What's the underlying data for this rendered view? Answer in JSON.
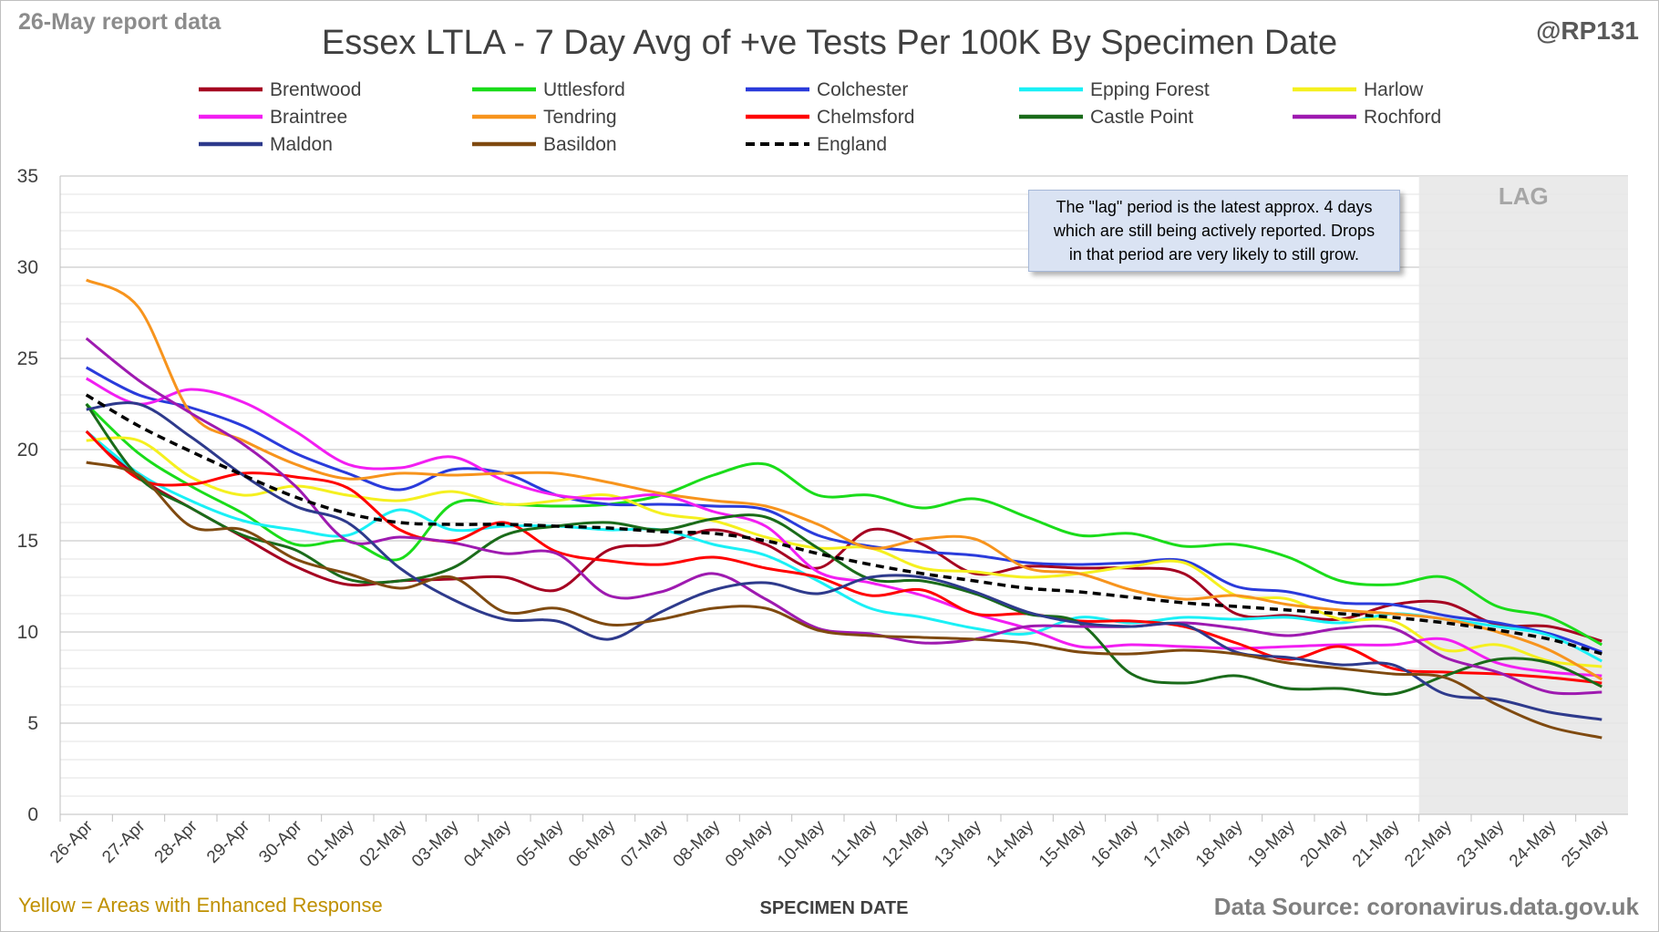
{
  "header": {
    "report_label": "26-May report data",
    "handle": "@RP131",
    "footer_note": "Yellow = Areas with Enhanced Response",
    "source": "Data Source: coronavirus.data.gov.uk"
  },
  "annotation": {
    "lag_label": "LAG",
    "note_lines": [
      "The \"lag\" period is the latest approx. 4 days",
      "which are still being actively reported.  Drops",
      "in that period are very likely to still grow."
    ]
  },
  "chart_data": {
    "type": "line",
    "title": "Essex LTLA - 7 Day Avg of +ve Tests Per 100K By Specimen Date",
    "xlabel": "SPECIMEN DATE",
    "ylabel": "",
    "ylim": [
      0,
      35
    ],
    "yticks": [
      0,
      5,
      10,
      15,
      20,
      25,
      30,
      35
    ],
    "grid": true,
    "legend_position": "top",
    "lag_start_category": "21-May",
    "categories": [
      "26-Apr",
      "27-Apr",
      "28-Apr",
      "29-Apr",
      "30-Apr",
      "01-May",
      "02-May",
      "03-May",
      "04-May",
      "05-May",
      "06-May",
      "07-May",
      "08-May",
      "09-May",
      "10-May",
      "11-May",
      "12-May",
      "13-May",
      "14-May",
      "15-May",
      "16-May",
      "17-May",
      "18-May",
      "19-May",
      "20-May",
      "21-May",
      "22-May",
      "23-May",
      "24-May",
      "25-May"
    ],
    "series": [
      {
        "name": "Brentwood",
        "color": "#a50021",
        "dash": false,
        "values": [
          21.0,
          18.5,
          16.8,
          15.2,
          13.6,
          12.6,
          12.8,
          12.9,
          13.0,
          12.3,
          14.5,
          14.8,
          15.6,
          14.8,
          13.5,
          15.6,
          14.8,
          13.2,
          13.6,
          13.5,
          13.5,
          13.2,
          11.0,
          10.9,
          10.7,
          11.5,
          11.6,
          10.4,
          10.3,
          9.5
        ]
      },
      {
        "name": "Uttlesford",
        "color": "#1adc1a",
        "dash": false,
        "values": [
          22.5,
          19.8,
          18.0,
          16.5,
          14.8,
          15.0,
          14.0,
          17.0,
          17.0,
          16.9,
          17.0,
          17.5,
          18.6,
          19.2,
          17.5,
          17.5,
          16.8,
          17.3,
          16.3,
          15.3,
          15.4,
          14.7,
          14.8,
          14.1,
          12.8,
          12.6,
          13.0,
          11.4,
          10.8,
          9.3
        ]
      },
      {
        "name": "Colchester",
        "color": "#2a3bdb",
        "dash": false,
        "values": [
          24.5,
          23.0,
          22.3,
          21.3,
          19.8,
          18.7,
          17.8,
          18.9,
          18.7,
          17.5,
          17.0,
          17.0,
          16.9,
          16.7,
          15.3,
          14.7,
          14.4,
          14.2,
          13.8,
          13.7,
          13.8,
          13.9,
          12.5,
          12.2,
          11.6,
          11.5,
          10.9,
          10.5,
          9.9,
          8.9
        ]
      },
      {
        "name": "Epping Forest",
        "color": "#1af0f6",
        "dash": false,
        "values": [
          21.0,
          18.7,
          17.2,
          16.1,
          15.6,
          15.3,
          16.7,
          15.6,
          15.8,
          15.8,
          15.6,
          15.6,
          14.8,
          14.2,
          12.8,
          11.3,
          10.8,
          10.2,
          9.9,
          10.8,
          10.5,
          10.8,
          10.7,
          10.8,
          10.5,
          11.0,
          10.7,
          10.3,
          9.8,
          8.4
        ]
      },
      {
        "name": "Harlow",
        "color": "#f5f01f",
        "dash": false,
        "values": [
          20.5,
          20.5,
          18.5,
          17.5,
          18.0,
          17.5,
          17.2,
          17.7,
          17.0,
          17.2,
          17.5,
          16.5,
          16.1,
          15.2,
          14.6,
          14.6,
          13.5,
          13.3,
          13.0,
          13.2,
          13.6,
          13.8,
          12.0,
          11.8,
          10.7,
          10.6,
          9.0,
          9.3,
          8.4,
          8.1
        ]
      },
      {
        "name": "Braintree",
        "color": "#f21ef2",
        "dash": false,
        "values": [
          23.9,
          22.5,
          23.3,
          22.6,
          21.0,
          19.2,
          19.0,
          19.6,
          18.3,
          17.5,
          17.3,
          17.5,
          16.6,
          15.8,
          13.3,
          12.7,
          12.0,
          11.0,
          10.2,
          9.2,
          9.3,
          9.2,
          9.1,
          9.2,
          9.3,
          9.3,
          9.6,
          8.3,
          7.8,
          7.6
        ]
      },
      {
        "name": "Tendring",
        "color": "#f7941d",
        "dash": false,
        "values": [
          29.3,
          27.8,
          22.0,
          20.5,
          19.2,
          18.4,
          18.7,
          18.6,
          18.7,
          18.7,
          18.2,
          17.6,
          17.2,
          16.9,
          15.9,
          14.6,
          15.1,
          15.1,
          13.5,
          13.2,
          12.3,
          11.8,
          12.0,
          11.5,
          11.2,
          11.0,
          10.7,
          10.0,
          9.0,
          7.4
        ]
      },
      {
        "name": "Chelmsford",
        "color": "#ff0000",
        "dash": false,
        "values": [
          21.0,
          18.4,
          18.1,
          18.7,
          18.5,
          17.9,
          15.6,
          15.0,
          16.0,
          14.4,
          13.9,
          13.7,
          14.1,
          13.5,
          13.0,
          12.0,
          12.3,
          11.0,
          11.0,
          10.6,
          10.6,
          10.3,
          9.4,
          8.5,
          9.2,
          8.0,
          7.8,
          7.7,
          7.5,
          7.2
        ]
      },
      {
        "name": "Castle Point",
        "color": "#1a6b1a",
        "dash": false,
        "values": [
          22.5,
          18.5,
          16.8,
          15.3,
          14.5,
          12.9,
          12.8,
          13.5,
          15.3,
          15.8,
          16.0,
          15.6,
          16.2,
          16.3,
          14.6,
          12.9,
          12.8,
          12.1,
          11.0,
          10.5,
          7.7,
          7.2,
          7.6,
          6.9,
          6.9,
          6.6,
          7.6,
          8.5,
          8.3,
          7.0
        ]
      },
      {
        "name": "Rochford",
        "color": "#9e1ab0",
        "dash": false,
        "values": [
          26.1,
          23.8,
          22.0,
          20.3,
          18.0,
          15.0,
          15.2,
          14.9,
          14.3,
          14.3,
          12.0,
          12.2,
          13.2,
          11.8,
          10.2,
          9.9,
          9.4,
          9.6,
          10.3,
          10.3,
          10.3,
          10.5,
          10.2,
          9.8,
          10.2,
          10.2,
          8.6,
          7.8,
          6.7,
          6.7
        ]
      },
      {
        "name": "Maldon",
        "color": "#2e3a8c",
        "dash": false,
        "values": [
          22.2,
          22.5,
          20.7,
          18.6,
          16.9,
          16.0,
          13.5,
          11.8,
          10.7,
          10.6,
          9.6,
          11.1,
          12.3,
          12.7,
          12.1,
          13.0,
          13.0,
          12.2,
          11.1,
          10.5,
          10.3,
          10.4,
          8.9,
          8.6,
          8.2,
          8.2,
          6.6,
          6.3,
          5.6,
          5.2
        ]
      },
      {
        "name": "Basildon",
        "color": "#7f4a10",
        "dash": false,
        "values": [
          19.3,
          18.6,
          15.8,
          15.6,
          14.0,
          13.2,
          12.4,
          13.0,
          11.1,
          11.3,
          10.4,
          10.7,
          11.3,
          11.3,
          10.1,
          9.8,
          9.7,
          9.6,
          9.4,
          8.9,
          8.8,
          9.0,
          8.8,
          8.3,
          8.0,
          7.7,
          7.5,
          6.0,
          4.8,
          4.2
        ]
      },
      {
        "name": "England",
        "color": "#000000",
        "dash": true,
        "values": [
          23.0,
          21.3,
          19.9,
          18.6,
          17.4,
          16.5,
          16.0,
          15.9,
          15.9,
          15.8,
          15.7,
          15.5,
          15.4,
          15.0,
          14.3,
          13.7,
          13.2,
          12.8,
          12.4,
          12.2,
          11.9,
          11.6,
          11.4,
          11.2,
          11.0,
          10.8,
          10.5,
          10.1,
          9.6,
          8.8
        ]
      }
    ]
  }
}
